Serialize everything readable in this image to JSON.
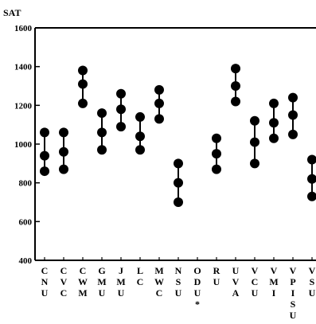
{
  "chart_data": {
    "type": "scatter",
    "ylabel": "SAT",
    "xlabel": "",
    "ylim": [
      400,
      1600
    ],
    "yticks": [
      400,
      600,
      800,
      1000,
      1200,
      1400,
      1600
    ],
    "ytick_labels": [
      "400",
      "600",
      "800",
      "1000",
      "1200",
      "1400",
      "1600"
    ],
    "grid": false,
    "legend": "none",
    "categories": [
      {
        "label": [
          "C",
          "N",
          "U"
        ],
        "values": [
          860,
          940,
          1060
        ]
      },
      {
        "label": [
          "C",
          "V",
          "C"
        ],
        "values": [
          870,
          960,
          1060
        ]
      },
      {
        "label": [
          "C",
          "W",
          "M"
        ],
        "values": [
          1210,
          1310,
          1380
        ]
      },
      {
        "label": [
          "G",
          "M",
          "U"
        ],
        "values": [
          970,
          1060,
          1160
        ]
      },
      {
        "label": [
          "J",
          "M",
          "U"
        ],
        "values": [
          1090,
          1180,
          1260
        ]
      },
      {
        "label": [
          "L",
          "C"
        ],
        "values": [
          970,
          1040,
          1140
        ]
      },
      {
        "label": [
          "M",
          "W",
          "C"
        ],
        "values": [
          1130,
          1210,
          1280
        ]
      },
      {
        "label": [
          "N",
          "S",
          "U"
        ],
        "values": [
          700,
          800,
          900
        ]
      },
      {
        "label": [
          "O",
          "D",
          "U",
          "*"
        ],
        "values": []
      },
      {
        "label": [
          "R",
          "U"
        ],
        "values": [
          870,
          950,
          1030
        ]
      },
      {
        "label": [
          "U",
          "V",
          "A"
        ],
        "values": [
          1220,
          1300,
          1390
        ]
      },
      {
        "label": [
          "V",
          "C",
          "U"
        ],
        "values": [
          900,
          1010,
          1120
        ]
      },
      {
        "label": [
          "V",
          "M",
          "I"
        ],
        "values": [
          1030,
          1110,
          1210
        ]
      },
      {
        "label": [
          "V",
          "P",
          "I",
          "S",
          "U"
        ],
        "values": [
          1050,
          1150,
          1240
        ]
      },
      {
        "label": [
          "V",
          "S",
          "U"
        ],
        "values": [
          730,
          820,
          920
        ]
      }
    ]
  }
}
